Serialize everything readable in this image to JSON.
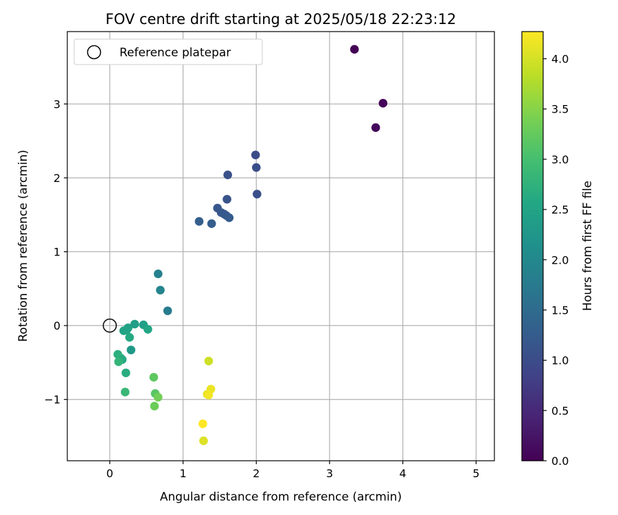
{
  "chart_data": {
    "type": "scatter",
    "title": "FOV centre drift starting at 2025/05/18 22:23:12",
    "xlabel": "Angular distance from reference (arcmin)",
    "ylabel": "Rotation from reference (arcmin)",
    "xlim": [
      -0.58,
      5.25
    ],
    "ylim": [
      -1.83,
      3.98
    ],
    "xticks": [
      0,
      1,
      2,
      3,
      4,
      5
    ],
    "xtick_labels": [
      "0",
      "1",
      "2",
      "3",
      "4",
      "5"
    ],
    "yticks": [
      -1,
      0,
      1,
      2,
      3
    ],
    "ytick_labels": [
      "−1",
      "0",
      "1",
      "2",
      "3"
    ],
    "grid": true,
    "legend": {
      "placement": "top-left",
      "entries": [
        "Reference platepar"
      ]
    },
    "reference_point": {
      "x": 0,
      "y": 0
    },
    "colorbar": {
      "label": "Hours from first FF file",
      "colormap": "viridis",
      "range": [
        0,
        4.27
      ],
      "ticks": [
        0.0,
        0.5,
        1.0,
        1.5,
        2.0,
        2.5,
        3.0,
        3.5,
        4.0
      ],
      "tick_labels": [
        "0.0",
        "0.5",
        "1.0",
        "1.5",
        "2.0",
        "2.5",
        "3.0",
        "3.5",
        "4.0"
      ]
    },
    "points": [
      {
        "x": 3.34,
        "y": 3.74,
        "c": 0.0
      },
      {
        "x": 3.73,
        "y": 3.01,
        "c": 0.05
      },
      {
        "x": 3.63,
        "y": 2.68,
        "c": 0.1
      },
      {
        "x": 1.99,
        "y": 2.31,
        "c": 1.0
      },
      {
        "x": 2.0,
        "y": 2.14,
        "c": 1.03
      },
      {
        "x": 1.61,
        "y": 2.04,
        "c": 1.08
      },
      {
        "x": 2.01,
        "y": 1.78,
        "c": 1.05
      },
      {
        "x": 1.6,
        "y": 1.71,
        "c": 1.12
      },
      {
        "x": 1.47,
        "y": 1.59,
        "c": 1.15
      },
      {
        "x": 1.52,
        "y": 1.53,
        "c": 1.18
      },
      {
        "x": 1.56,
        "y": 1.51,
        "c": 1.2
      },
      {
        "x": 1.59,
        "y": 1.49,
        "c": 1.22
      },
      {
        "x": 1.63,
        "y": 1.46,
        "c": 1.25
      },
      {
        "x": 1.22,
        "y": 1.41,
        "c": 1.3
      },
      {
        "x": 1.39,
        "y": 1.38,
        "c": 1.28
      },
      {
        "x": 0.66,
        "y": 0.7,
        "c": 1.85
      },
      {
        "x": 0.69,
        "y": 0.48,
        "c": 1.92
      },
      {
        "x": 0.79,
        "y": 0.2,
        "c": 1.78
      },
      {
        "x": 0.34,
        "y": 0.02,
        "c": 2.4
      },
      {
        "x": 0.46,
        "y": 0.01,
        "c": 2.42
      },
      {
        "x": 0.25,
        "y": -0.03,
        "c": 2.45
      },
      {
        "x": 0.52,
        "y": -0.05,
        "c": 2.55
      },
      {
        "x": 0.19,
        "y": -0.07,
        "c": 2.5
      },
      {
        "x": 0.23,
        "y": -0.06,
        "c": 2.48
      },
      {
        "x": 0.27,
        "y": -0.16,
        "c": 2.6
      },
      {
        "x": 0.29,
        "y": -0.33,
        "c": 2.3
      },
      {
        "x": 0.11,
        "y": -0.39,
        "c": 2.7
      },
      {
        "x": 0.15,
        "y": -0.44,
        "c": 2.75
      },
      {
        "x": 0.17,
        "y": -0.46,
        "c": 2.62
      },
      {
        "x": 0.12,
        "y": -0.49,
        "c": 2.8
      },
      {
        "x": 0.22,
        "y": -0.64,
        "c": 2.65
      },
      {
        "x": 0.21,
        "y": -0.9,
        "c": 2.85
      },
      {
        "x": 0.6,
        "y": -0.7,
        "c": 3.2
      },
      {
        "x": 0.62,
        "y": -0.92,
        "c": 3.15
      },
      {
        "x": 0.66,
        "y": -0.97,
        "c": 3.35
      },
      {
        "x": 0.61,
        "y": -1.09,
        "c": 3.3
      },
      {
        "x": 1.35,
        "y": -0.48,
        "c": 3.95
      },
      {
        "x": 1.38,
        "y": -0.86,
        "c": 4.15
      },
      {
        "x": 1.33,
        "y": -0.93,
        "c": 4.1
      },
      {
        "x": 1.35,
        "y": -0.94,
        "c": 4.2
      },
      {
        "x": 1.27,
        "y": -1.33,
        "c": 4.27
      },
      {
        "x": 1.28,
        "y": -1.56,
        "c": 4.05
      }
    ]
  }
}
